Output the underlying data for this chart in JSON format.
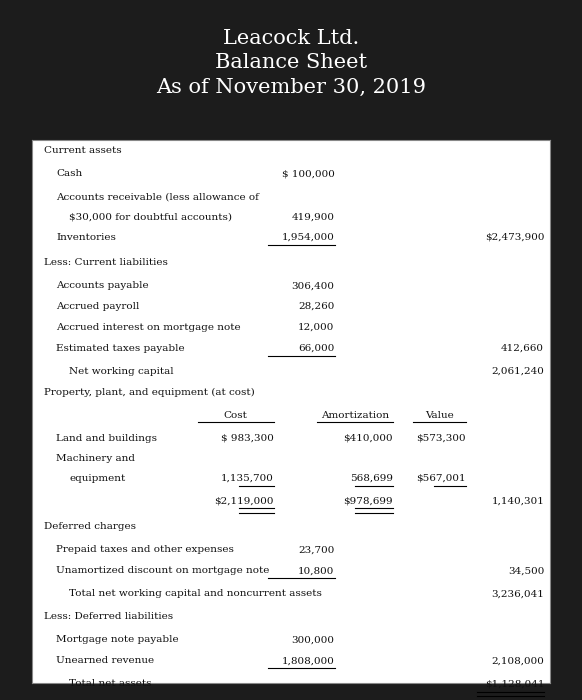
{
  "title_line1": "Leacock Ltd.",
  "title_line2": "Balance Sheet",
  "title_line3": "As of November 30, 2019",
  "bg_color": "#1c1c1c",
  "header_text_color": "#ffffff",
  "box_bg": "#ffffff",
  "box_text_color": "#111111",
  "box_border_color": "#888888"
}
